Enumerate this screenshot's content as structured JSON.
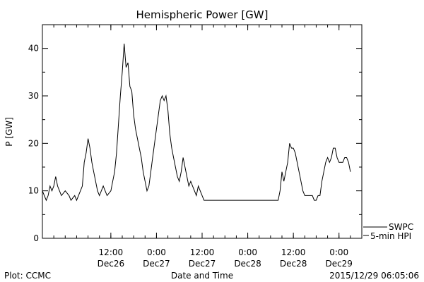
{
  "chart_data": {
    "type": "line",
    "title": "Hemispheric Power [GW]",
    "xlabel": "Date and Time",
    "ylabel": "P [GW]",
    "ylim": [
      0,
      45
    ],
    "xlim": [
      "2015-12-25 18:00",
      "2015-12-29 06:00"
    ],
    "grid": false,
    "y_ticks": [
      0,
      10,
      20,
      30,
      40
    ],
    "x_ticks": [
      {
        "x": "2015-12-26 12:00",
        "label_time": "12:00",
        "label_date": "Dec26"
      },
      {
        "x": "2015-12-27 00:00",
        "label_time": "0:00",
        "label_date": "Dec27"
      },
      {
        "x": "2015-12-27 12:00",
        "label_time": "12:00",
        "label_date": "Dec27"
      },
      {
        "x": "2015-12-28 00:00",
        "label_time": "0:00",
        "label_date": "Dec28"
      },
      {
        "x": "2015-12-28 12:00",
        "label_time": "12:00",
        "label_date": "Dec28"
      },
      {
        "x": "2015-12-29 00:00",
        "label_time": "0:00",
        "label_date": "Dec29"
      }
    ],
    "series": [
      {
        "name": "SWPC",
        "values": [
          [
            "2015-12-25 18:00",
            10
          ],
          [
            "2015-12-25 18:30",
            9
          ],
          [
            "2015-12-25 19:00",
            8
          ],
          [
            "2015-12-25 19:30",
            9
          ],
          [
            "2015-12-25 20:00",
            11
          ],
          [
            "2015-12-25 20:30",
            10
          ],
          [
            "2015-12-25 21:00",
            11
          ],
          [
            "2015-12-25 21:30",
            13
          ],
          [
            "2015-12-25 22:00",
            11
          ],
          [
            "2015-12-25 22:30",
            10
          ],
          [
            "2015-12-25 23:00",
            9
          ],
          [
            "2015-12-26 00:00",
            10
          ],
          [
            "2015-12-26 01:00",
            9
          ],
          [
            "2015-12-26 01:30",
            8
          ],
          [
            "2015-12-26 02:30",
            9
          ],
          [
            "2015-12-26 03:00",
            8
          ],
          [
            "2015-12-26 03:30",
            9
          ],
          [
            "2015-12-26 04:00",
            10
          ],
          [
            "2015-12-26 04:30",
            11
          ],
          [
            "2015-12-26 05:00",
            16
          ],
          [
            "2015-12-26 05:30",
            18
          ],
          [
            "2015-12-26 06:00",
            21
          ],
          [
            "2015-12-26 06:30",
            19
          ],
          [
            "2015-12-26 07:00",
            16
          ],
          [
            "2015-12-26 07:30",
            14
          ],
          [
            "2015-12-26 08:00",
            12
          ],
          [
            "2015-12-26 08:30",
            10
          ],
          [
            "2015-12-26 09:00",
            9
          ],
          [
            "2015-12-26 09:30",
            10
          ],
          [
            "2015-12-26 10:00",
            11
          ],
          [
            "2015-12-26 10:30",
            10
          ],
          [
            "2015-12-26 11:00",
            9
          ],
          [
            "2015-12-26 12:00",
            10
          ],
          [
            "2015-12-26 12:30",
            12
          ],
          [
            "2015-12-26 13:00",
            14
          ],
          [
            "2015-12-26 13:30",
            18
          ],
          [
            "2015-12-26 14:00",
            24
          ],
          [
            "2015-12-26 14:30",
            30
          ],
          [
            "2015-12-26 15:00",
            35
          ],
          [
            "2015-12-26 15:30",
            41
          ],
          [
            "2015-12-26 16:00",
            36
          ],
          [
            "2015-12-26 16:30",
            37
          ],
          [
            "2015-12-26 17:00",
            32
          ],
          [
            "2015-12-26 17:30",
            31
          ],
          [
            "2015-12-26 18:00",
            26
          ],
          [
            "2015-12-26 18:30",
            23
          ],
          [
            "2015-12-26 19:00",
            21
          ],
          [
            "2015-12-26 19:30",
            19
          ],
          [
            "2015-12-26 20:00",
            17
          ],
          [
            "2015-12-26 20:30",
            14
          ],
          [
            "2015-12-26 21:00",
            12
          ],
          [
            "2015-12-26 21:30",
            10
          ],
          [
            "2015-12-26 22:00",
            11
          ],
          [
            "2015-12-26 22:30",
            14
          ],
          [
            "2015-12-26 23:00",
            17
          ],
          [
            "2015-12-26 23:30",
            20
          ],
          [
            "2015-12-27 00:00",
            23
          ],
          [
            "2015-12-27 00:30",
            26
          ],
          [
            "2015-12-27 01:00",
            29
          ],
          [
            "2015-12-27 01:30",
            30
          ],
          [
            "2015-12-27 02:00",
            29
          ],
          [
            "2015-12-27 02:30",
            30
          ],
          [
            "2015-12-27 03:00",
            27
          ],
          [
            "2015-12-27 03:30",
            22
          ],
          [
            "2015-12-27 04:00",
            19
          ],
          [
            "2015-12-27 04:30",
            17
          ],
          [
            "2015-12-27 05:00",
            15
          ],
          [
            "2015-12-27 05:30",
            13
          ],
          [
            "2015-12-27 06:00",
            12
          ],
          [
            "2015-12-27 06:30",
            14
          ],
          [
            "2015-12-27 07:00",
            17
          ],
          [
            "2015-12-27 07:30",
            15
          ],
          [
            "2015-12-27 08:00",
            13
          ],
          [
            "2015-12-27 08:30",
            11
          ],
          [
            "2015-12-27 09:00",
            12
          ],
          [
            "2015-12-27 09:30",
            11
          ],
          [
            "2015-12-27 10:00",
            10
          ],
          [
            "2015-12-27 10:30",
            9
          ],
          [
            "2015-12-27 11:00",
            11
          ],
          [
            "2015-12-27 11:30",
            10
          ],
          [
            "2015-12-27 12:00",
            9
          ],
          [
            "2015-12-27 12:30",
            8
          ],
          [
            "2015-12-27 13:00",
            8
          ],
          [
            "2015-12-28 00:00",
            8
          ],
          [
            "2015-12-28 08:00",
            8
          ],
          [
            "2015-12-28 08:30",
            10
          ],
          [
            "2015-12-28 09:00",
            14
          ],
          [
            "2015-12-28 09:30",
            12
          ],
          [
            "2015-12-28 10:00",
            14
          ],
          [
            "2015-12-28 10:30",
            16
          ],
          [
            "2015-12-28 11:00",
            20
          ],
          [
            "2015-12-28 11:30",
            19
          ],
          [
            "2015-12-28 12:00",
            19
          ],
          [
            "2015-12-28 12:30",
            18
          ],
          [
            "2015-12-28 13:00",
            16
          ],
          [
            "2015-12-28 13:30",
            14
          ],
          [
            "2015-12-28 14:00",
            12
          ],
          [
            "2015-12-28 14:30",
            10
          ],
          [
            "2015-12-28 15:00",
            9
          ],
          [
            "2015-12-28 16:00",
            9
          ],
          [
            "2015-12-28 17:00",
            9
          ],
          [
            "2015-12-28 17:30",
            8
          ],
          [
            "2015-12-28 18:00",
            8
          ],
          [
            "2015-12-28 18:30",
            9
          ],
          [
            "2015-12-28 19:00",
            9
          ],
          [
            "2015-12-28 19:30",
            12
          ],
          [
            "2015-12-28 20:00",
            14
          ],
          [
            "2015-12-28 20:30",
            16
          ],
          [
            "2015-12-28 21:00",
            17
          ],
          [
            "2015-12-28 21:30",
            16
          ],
          [
            "2015-12-28 22:00",
            17
          ],
          [
            "2015-12-28 22:30",
            19
          ],
          [
            "2015-12-28 23:00",
            19
          ],
          [
            "2015-12-28 23:30",
            17
          ],
          [
            "2015-12-29 00:00",
            16
          ],
          [
            "2015-12-29 01:00",
            16
          ],
          [
            "2015-12-29 01:30",
            17
          ],
          [
            "2015-12-29 02:00",
            17
          ],
          [
            "2015-12-29 02:30",
            16
          ],
          [
            "2015-12-29 03:00",
            14
          ]
        ]
      },
      {
        "name": "5-min HPI",
        "values": []
      }
    ],
    "legend_location": "lower-right"
  },
  "footer": {
    "left": "Plot: CCMC",
    "right": "2015/12/29 06:05:06"
  }
}
